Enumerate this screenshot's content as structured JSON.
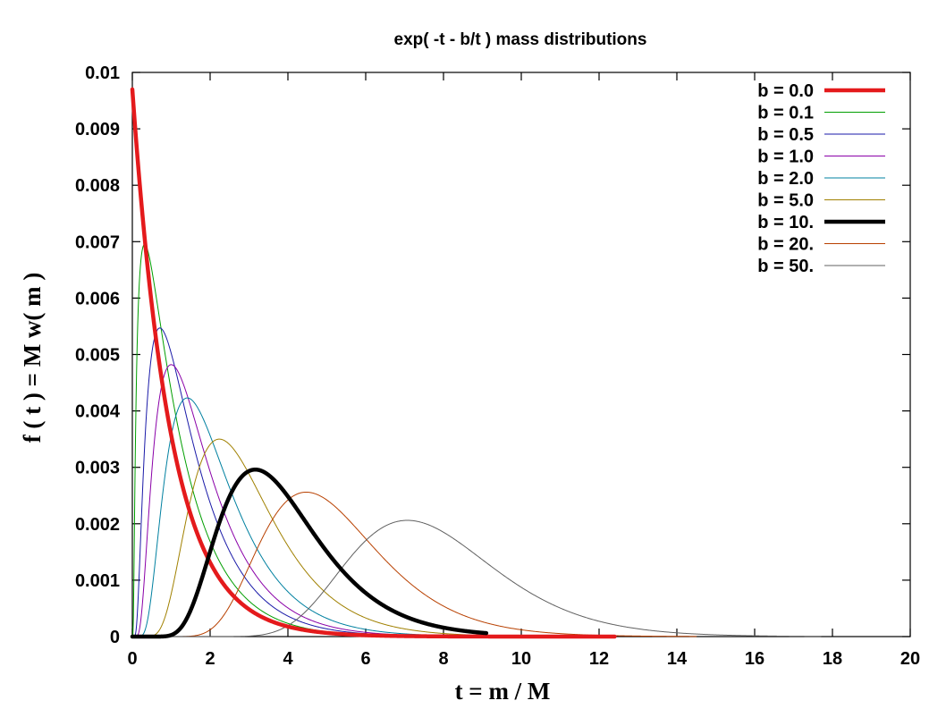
{
  "chart_data": {
    "type": "line",
    "title": "exp( -t - b/t ) mass distributions",
    "xlabel": "t = m / M",
    "ylabel": "f ( t ) = M w( m )",
    "xlim": [
      0,
      20
    ],
    "ylim": [
      0,
      0.01
    ],
    "x_ticks": [
      "0",
      "2",
      "4",
      "6",
      "8",
      "10",
      "12",
      "14",
      "16",
      "18",
      "20"
    ],
    "y_ticks": [
      "0",
      "0.001",
      "0.002",
      "0.003",
      "0.004",
      "0.005",
      "0.006",
      "0.007",
      "0.008",
      "0.009",
      "0.01"
    ],
    "grid": false,
    "legend_position": "top-right",
    "series": [
      {
        "name": "b = 0.0",
        "b": 0.0,
        "color": "#e41a1c",
        "bold": true,
        "peak_t": 0.0,
        "peak_f": 0.0097,
        "x_max": 12.4
      },
      {
        "name": "b = 0.1",
        "b": 0.1,
        "color": "#009e00",
        "bold": false,
        "peak_t": 0.27,
        "peak_f": 0.0069,
        "x_max": 12.4
      },
      {
        "name": "b = 0.5",
        "b": 0.5,
        "color": "#1a1aa8",
        "bold": false,
        "peak_t": 0.71,
        "peak_f": 0.00547,
        "x_max": 12.4
      },
      {
        "name": "b = 1.0",
        "b": 1.0,
        "color": "#8a00a8",
        "bold": false,
        "peak_t": 1.0,
        "peak_f": 0.00482,
        "x_max": 12.4
      },
      {
        "name": "b = 2.0",
        "b": 2.0,
        "color": "#0080a0",
        "bold": false,
        "peak_t": 1.41,
        "peak_f": 0.00423,
        "x_max": 12.4
      },
      {
        "name": "b = 5.0",
        "b": 5.0,
        "color": "#a08000",
        "bold": false,
        "peak_t": 2.24,
        "peak_f": 0.0035,
        "x_max": 12.4
      },
      {
        "name": "b = 10.",
        "b": 10.0,
        "color": "#000000",
        "bold": true,
        "peak_t": 3.16,
        "peak_f": 0.00296,
        "x_max": 9.1
      },
      {
        "name": "b = 20.",
        "b": 20.0,
        "color": "#b84000",
        "bold": false,
        "peak_t": 4.47,
        "peak_f": 0.00256,
        "x_max": 14.5
      },
      {
        "name": "b = 50.",
        "b": 50.0,
        "color": "#606060",
        "bold": false,
        "peak_t": 7.07,
        "peak_f": 0.00206,
        "x_max": 17.7
      }
    ]
  }
}
